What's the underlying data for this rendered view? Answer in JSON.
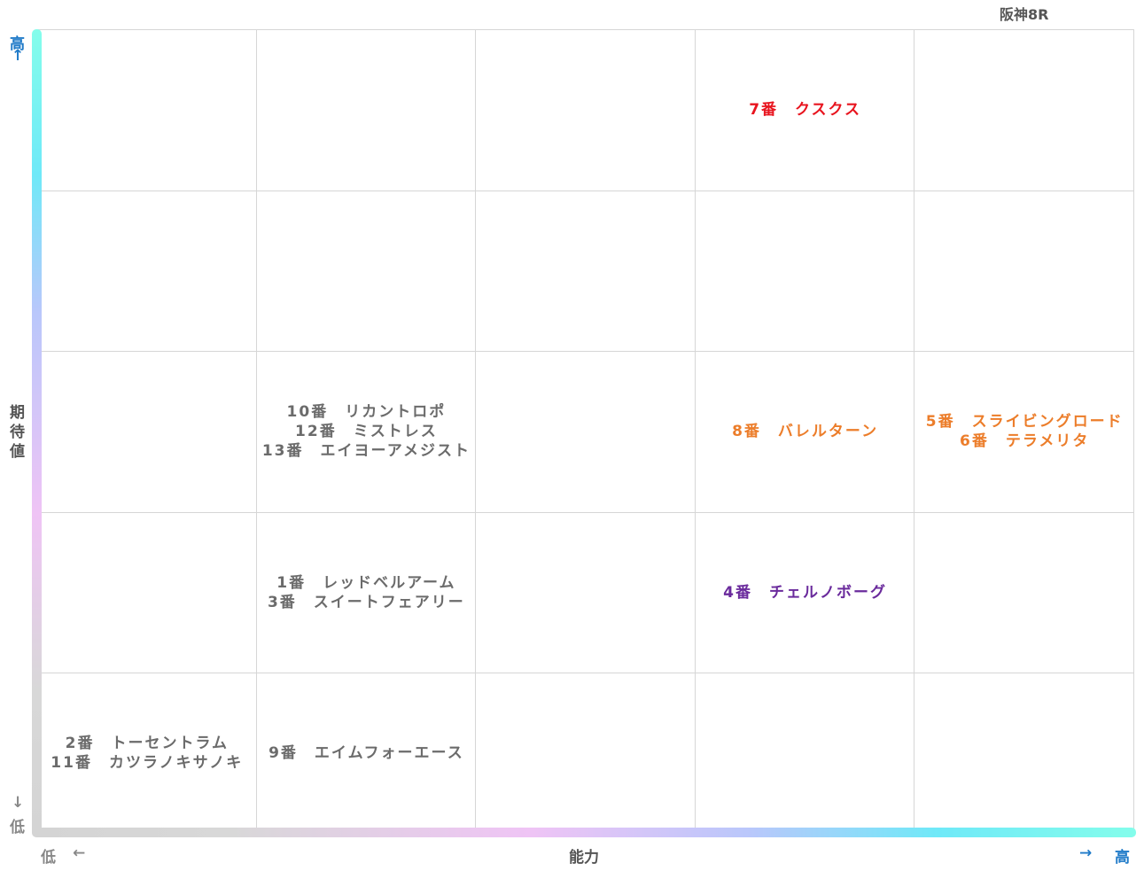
{
  "title": "阪神8R",
  "axes": {
    "y_label": "期待値",
    "x_label": "能力",
    "y_high": "高",
    "y_low": "低",
    "x_high": "高",
    "x_low": "低",
    "arrow_up": "↑",
    "arrow_down": "↓",
    "arrow_left": "←",
    "arrow_right": "→"
  },
  "colors": {
    "red": "#e8141e",
    "orange": "#ec7d2a",
    "purple": "#6a2a9c",
    "gray": "#6b6b6b"
  },
  "chart_data": {
    "type": "table",
    "x_axis": "能力",
    "y_axis": "期待値",
    "columns": 5,
    "rows": 5,
    "cells": [
      {
        "row": 1,
        "col": 4,
        "color": "red",
        "horses": [
          "7番　クスクス"
        ]
      },
      {
        "row": 3,
        "col": 2,
        "color": "gray",
        "horses": [
          "10番　リカントロポ",
          "12番　ミストレス",
          "13番　エイヨーアメジスト"
        ]
      },
      {
        "row": 3,
        "col": 4,
        "color": "orange",
        "horses": [
          "8番　バレルターン"
        ]
      },
      {
        "row": 3,
        "col": 5,
        "color": "orange",
        "horses": [
          "5番　スライビングロード",
          "6番　テラメリタ"
        ]
      },
      {
        "row": 4,
        "col": 2,
        "color": "gray",
        "horses": [
          "1番　レッドベルアーム",
          "3番　スイートフェアリー"
        ]
      },
      {
        "row": 4,
        "col": 4,
        "color": "purple",
        "horses": [
          "4番　チェルノボーグ"
        ]
      },
      {
        "row": 5,
        "col": 1,
        "color": "gray",
        "horses": [
          "2番　トーセントラム",
          "11番　カツラノキサノキ"
        ]
      },
      {
        "row": 5,
        "col": 2,
        "color": "gray",
        "horses": [
          "9番　エイムフォーエース"
        ]
      }
    ]
  }
}
